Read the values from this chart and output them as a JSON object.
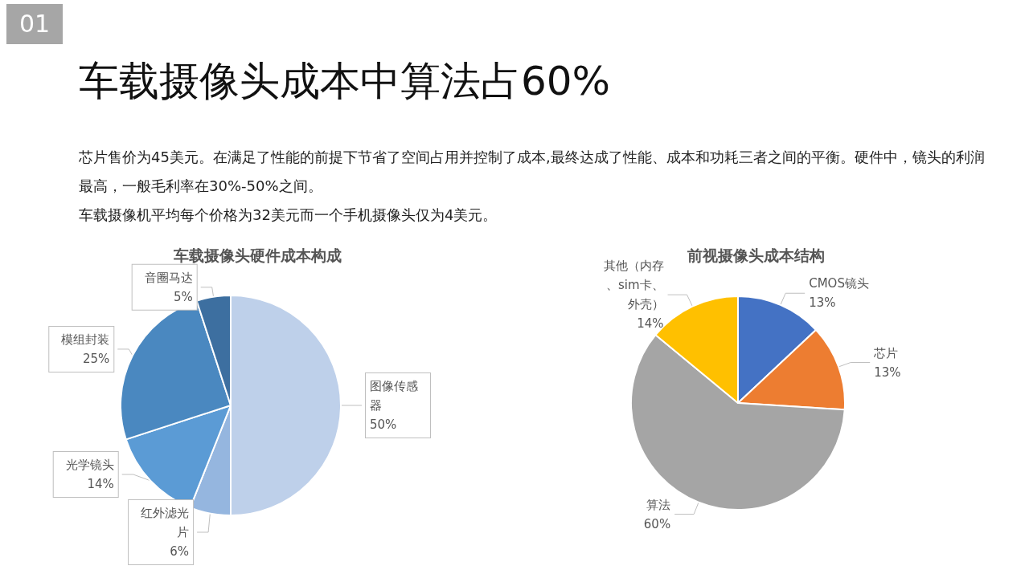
{
  "chart_data": [
    {
      "type": "other",
      "title": "车载摄像头成本中算法占60%",
      "annotations": [
        "01",
        "芯片售价为45美元。在满足了性能的前提下节省了空间占用并控制了成本,最终达成了性能、成本和功耗三者之间的平衡。硬件中，镜头的利润最高，一般毛利率在30%-50%之间。",
        "车载摄像机平均每个价格为32美元而一个手机摄像头仅为4美元。"
      ]
    },
    {
      "type": "pie",
      "title": "车载摄像头硬件成本构成",
      "categories": [
        "图像传感器",
        "红外滤光片",
        "光学镜头",
        "模组封装",
        "音圈马达"
      ],
      "values": [
        50,
        6,
        14,
        25,
        5
      ],
      "value_labels": [
        "50%",
        "6%",
        "14%",
        "25%",
        "5%"
      ],
      "colors": [
        "#bed0ea",
        "#95b6df",
        "#5b9bd5",
        "#4a88c0",
        "#3d6fa0"
      ]
    },
    {
      "type": "pie",
      "title": "前视摄像头成本结构",
      "categories": [
        "CMOS镜头",
        "芯片",
        "算法",
        "其他（内存、sim卡、外壳）"
      ],
      "values": [
        13,
        13,
        60,
        14
      ],
      "value_labels": [
        "13%",
        "13%",
        "60%",
        "14%"
      ],
      "colors": [
        "#4472c4",
        "#ed7d31",
        "#a5a5a5",
        "#ffc000"
      ]
    }
  ]
}
